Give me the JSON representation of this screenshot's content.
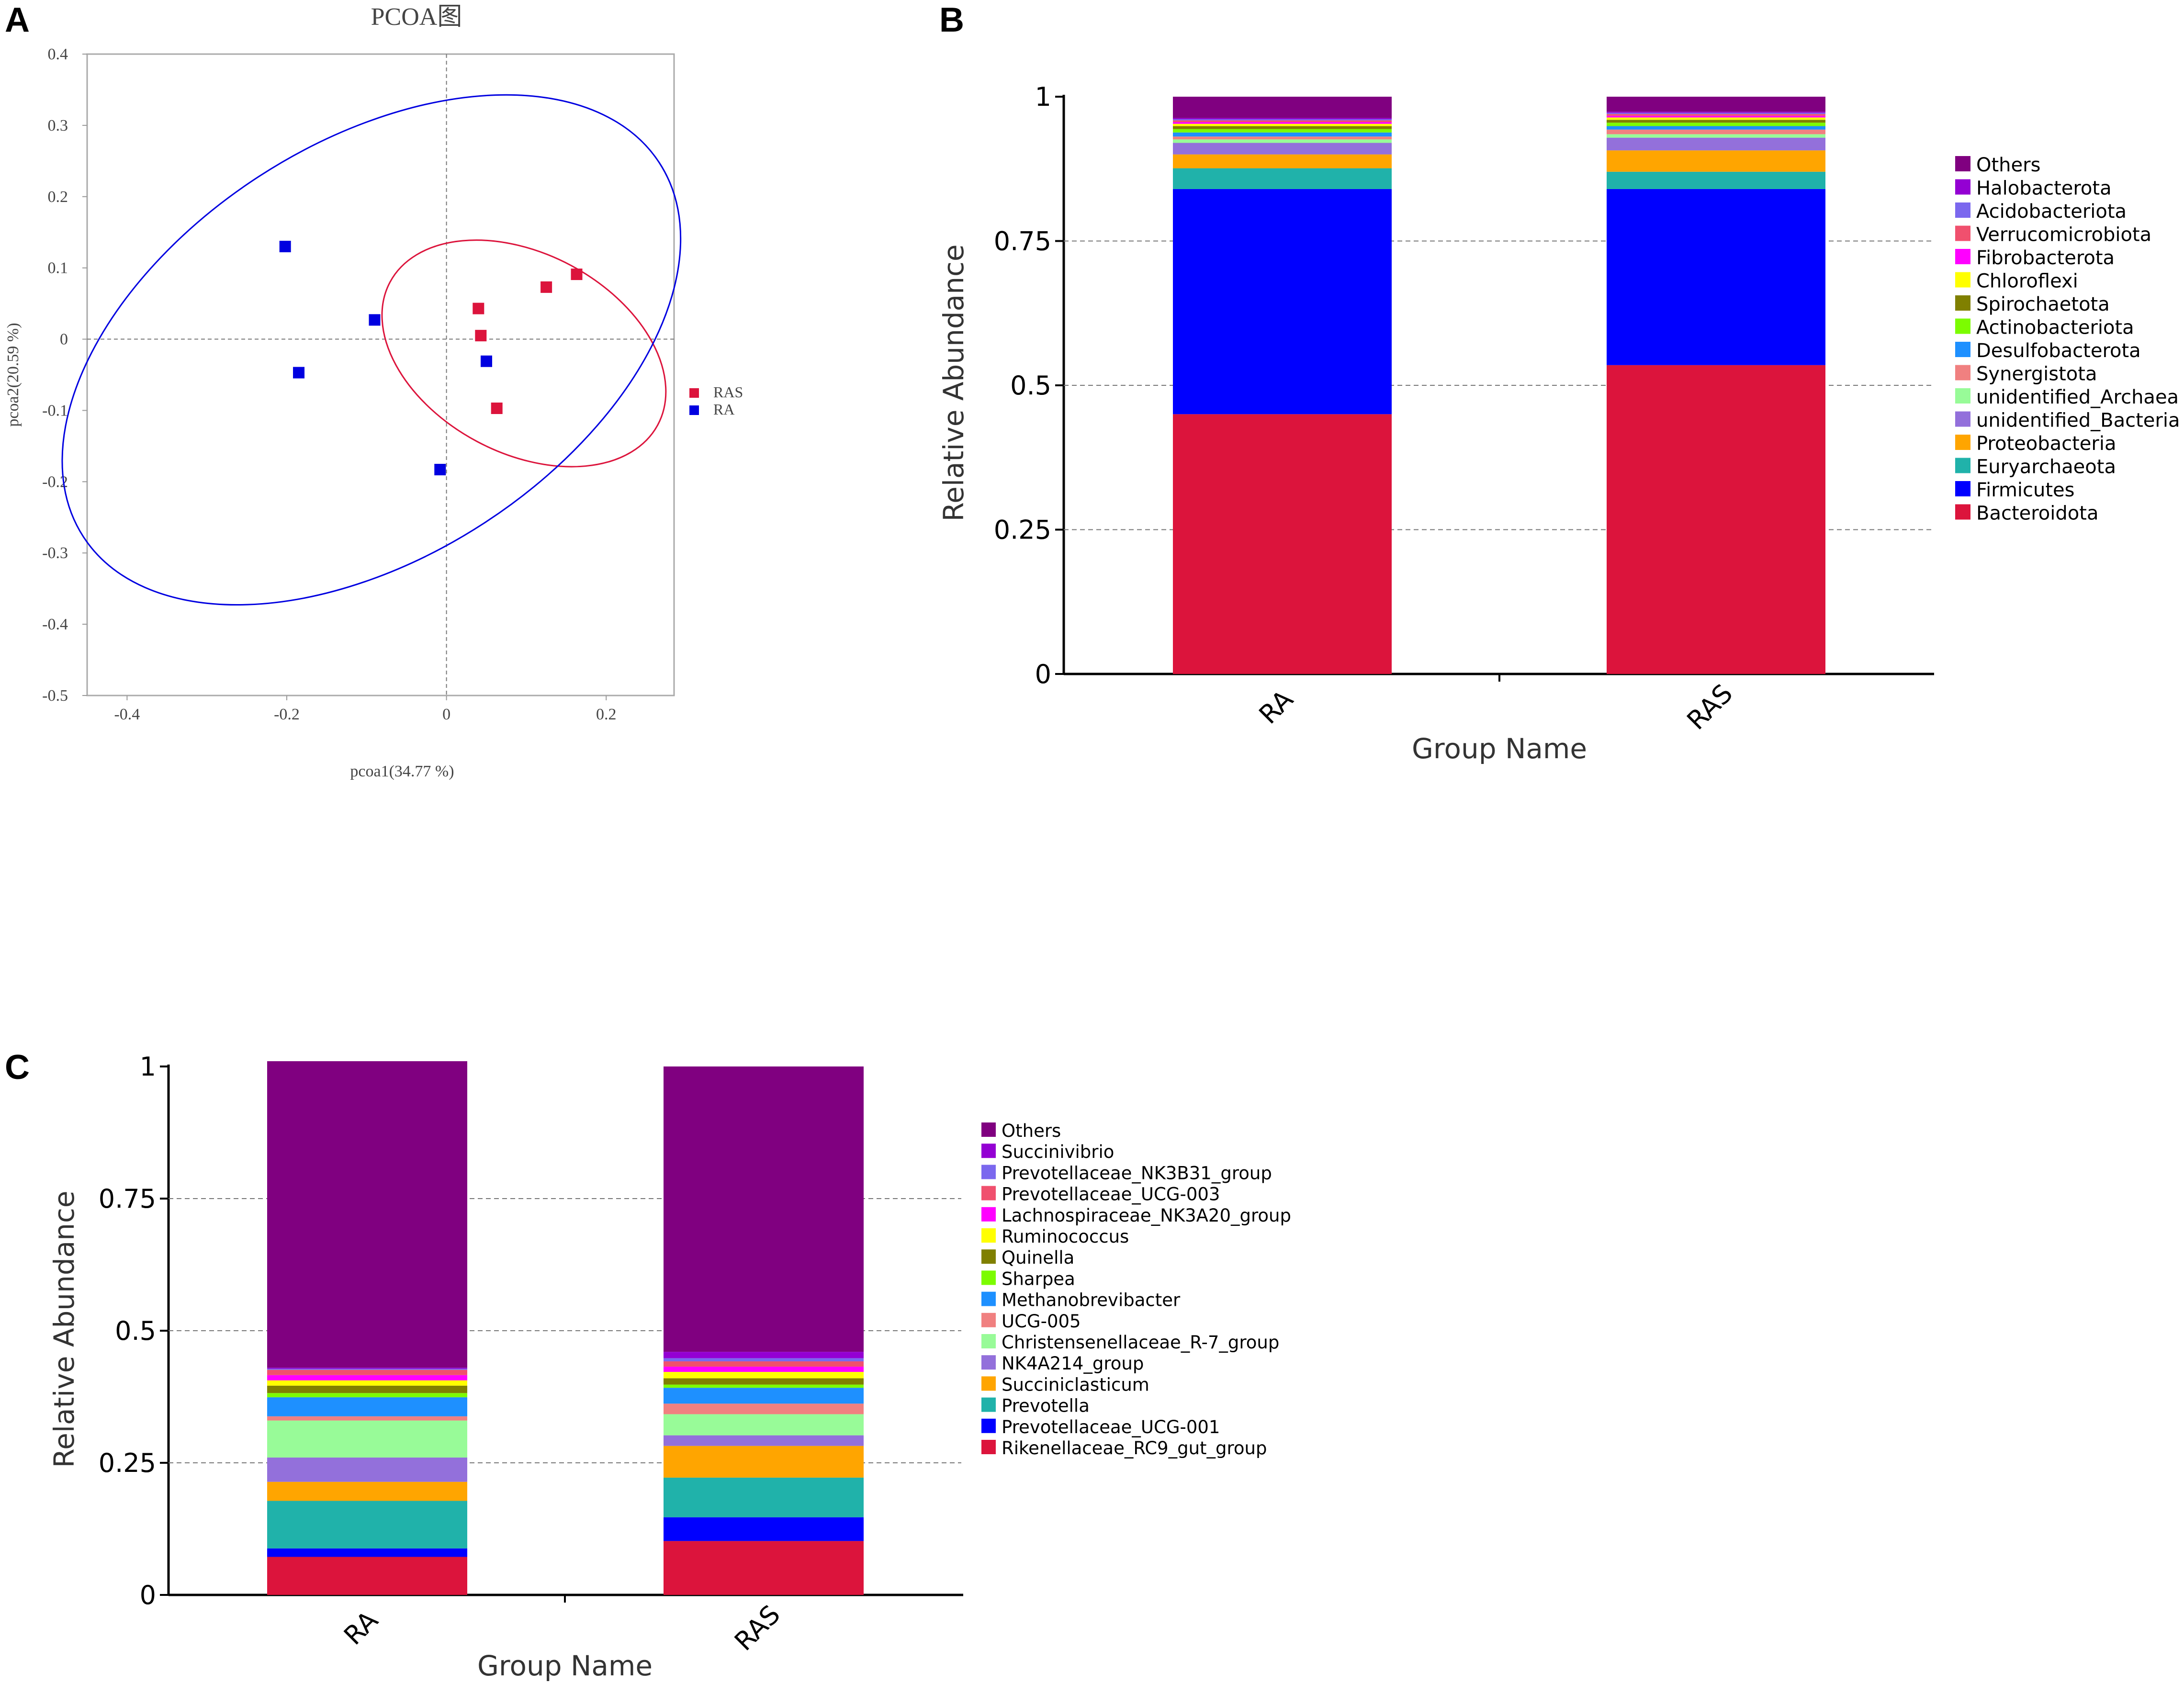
{
  "panels": {
    "a": {
      "letter": "A"
    },
    "b": {
      "letter": "B"
    },
    "c": {
      "letter": "C"
    }
  },
  "chart_data": [
    {
      "id": "pcoa",
      "type": "scatter",
      "title": "PCOA图",
      "xlabel": "pcoa1(34.77 %)",
      "ylabel": "pcoa2(20.59 %)",
      "xlim": [
        -0.45,
        0.285
      ],
      "ylim": [
        -0.5,
        0.4
      ],
      "xticks": [
        -0.4,
        -0.2,
        0,
        0.2
      ],
      "xtick_labels": [
        "-0.4",
        "-0.2",
        "0",
        "0.2"
      ],
      "yticks": [
        0.4,
        0.3,
        0.2,
        0.1,
        0,
        -0.1,
        -0.2,
        -0.3,
        -0.4,
        -0.5
      ],
      "ytick_labels": [
        "0.4",
        "0.3",
        "0.2",
        "0.1",
        "0",
        "-0.1",
        "-0.2",
        "-0.3",
        "-0.4",
        "-0.5"
      ],
      "legend_position": "right",
      "series": [
        {
          "name": "RAS",
          "color": "#dc143c",
          "points": [
            [
              0.04,
              0.043
            ],
            [
              0.043,
              0.005
            ],
            [
              0.125,
              0.073
            ],
            [
              0.163,
              0.091
            ],
            [
              0.063,
              -0.097
            ]
          ],
          "ellipse": {
            "cx": 0.097,
            "cy": -0.02,
            "rx": 0.19,
            "ry": 0.14,
            "angle_deg": 28
          }
        },
        {
          "name": "RA",
          "color": "#0000e0",
          "points": [
            [
              -0.202,
              0.13
            ],
            [
              -0.09,
              0.027
            ],
            [
              -0.185,
              -0.047
            ],
            [
              0.05,
              -0.031
            ],
            [
              -0.008,
              -0.183
            ]
          ],
          "ellipse": {
            "cx": -0.094,
            "cy": -0.015,
            "rx": 0.43,
            "ry": 0.29,
            "angle_deg": -33
          }
        }
      ]
    },
    {
      "id": "phylum",
      "type": "bar",
      "stacked": true,
      "xlabel": "Group Name",
      "ylabel": "Relative Abundance",
      "ylim": [
        0,
        1
      ],
      "yticks": [
        0,
        0.25,
        0.5,
        0.75,
        1
      ],
      "ytick_labels": [
        "0",
        "0.25",
        "0.5",
        "0.75",
        "1"
      ],
      "grid": "dashed horizontal at 0.25, 0.5, 0.75",
      "legend_position": "right",
      "categories": [
        "RA",
        "RAS"
      ],
      "series": [
        {
          "name": "Bacteroidota",
          "color": "#dc143c",
          "values": [
            0.45,
            0.535
          ]
        },
        {
          "name": "Firmicutes",
          "color": "#0000ff",
          "values": [
            0.39,
            0.305
          ]
        },
        {
          "name": "Euryarchaeota",
          "color": "#20b2aa",
          "values": [
            0.036,
            0.03
          ]
        },
        {
          "name": "Proteobacteria",
          "color": "#ffa500",
          "values": [
            0.024,
            0.037
          ]
        },
        {
          "name": "unidentified_Bacteria",
          "color": "#9370db",
          "values": [
            0.02,
            0.022
          ]
        },
        {
          "name": "unidentified_Archaea",
          "color": "#98fb98",
          "values": [
            0.006,
            0.006
          ]
        },
        {
          "name": "Synergistota",
          "color": "#f08080",
          "values": [
            0.005,
            0.008
          ]
        },
        {
          "name": "Desulfobacterota",
          "color": "#1e90ff",
          "values": [
            0.007,
            0.006
          ]
        },
        {
          "name": "Actinobacteriota",
          "color": "#7cfc00",
          "values": [
            0.006,
            0.006
          ]
        },
        {
          "name": "Spirochaetota",
          "color": "#808000",
          "values": [
            0.005,
            0.005
          ]
        },
        {
          "name": "Chloroflexi",
          "color": "#ffff00",
          "values": [
            0.004,
            0.004
          ]
        },
        {
          "name": "Fibrobacterota",
          "color": "#ff00ff",
          "values": [
            0.003,
            0.003
          ]
        },
        {
          "name": "Verrucomicrobiota",
          "color": "#f0506e",
          "values": [
            0.003,
            0.003
          ]
        },
        {
          "name": "Acidobacteriota",
          "color": "#7b68ee",
          "values": [
            0.002,
            0.002
          ]
        },
        {
          "name": "Halobacterota",
          "color": "#9400d3",
          "values": [
            0.002,
            0.002
          ]
        },
        {
          "name": "Others",
          "color": "#800080",
          "values": [
            0.037,
            0.026
          ]
        }
      ]
    },
    {
      "id": "genus",
      "type": "bar",
      "stacked": true,
      "xlabel": "Group Name",
      "ylabel": "Relative Abundance",
      "ylim": [
        0,
        1
      ],
      "yticks": [
        0,
        0.25,
        0.5,
        0.75,
        1
      ],
      "ytick_labels": [
        "0",
        "0.25",
        "0.5",
        "0.75",
        "1"
      ],
      "grid": "dashed horizontal at 0.25, 0.5, 0.75",
      "legend_position": "right",
      "categories": [
        "RA",
        "RAS"
      ],
      "series": [
        {
          "name": "Rikenellaceae_RC9_gut_group",
          "color": "#dc143c",
          "values": [
            0.072,
            0.102
          ]
        },
        {
          "name": "Prevotellaceae_UCG-001",
          "color": "#0000ff",
          "values": [
            0.016,
            0.045
          ]
        },
        {
          "name": "Prevotella",
          "color": "#20b2aa",
          "values": [
            0.09,
            0.075
          ]
        },
        {
          "name": "Succiniclasticum",
          "color": "#ffa500",
          "values": [
            0.036,
            0.06
          ]
        },
        {
          "name": "NK4A214_group",
          "color": "#9370db",
          "values": [
            0.046,
            0.02
          ]
        },
        {
          "name": "Christensenellaceae_R-7_group",
          "color": "#98fb98",
          "values": [
            0.07,
            0.04
          ]
        },
        {
          "name": "UCG-005",
          "color": "#f08080",
          "values": [
            0.008,
            0.02
          ]
        },
        {
          "name": "Methanobrevibacter",
          "color": "#1e90ff",
          "values": [
            0.036,
            0.03
          ]
        },
        {
          "name": "Sharpea",
          "color": "#7cfc00",
          "values": [
            0.008,
            0.006
          ]
        },
        {
          "name": "Quinella",
          "color": "#808000",
          "values": [
            0.014,
            0.012
          ]
        },
        {
          "name": "Ruminococcus",
          "color": "#ffff00",
          "values": [
            0.01,
            0.012
          ]
        },
        {
          "name": "Lachnospiraceae_NK3A20_group",
          "color": "#ff00ff",
          "values": [
            0.01,
            0.01
          ]
        },
        {
          "name": "Prevotellaceae_UCG-003",
          "color": "#f0506e",
          "values": [
            0.01,
            0.01
          ]
        },
        {
          "name": "Prevotellaceae_NK3B31_group",
          "color": "#7b68ee",
          "values": [
            0.002,
            0.006
          ]
        },
        {
          "name": "Succinivibrio",
          "color": "#9400d3",
          "values": [
            0.002,
            0.012
          ]
        },
        {
          "name": "Others",
          "color": "#800080",
          "values": [
            0.58,
            0.54
          ]
        }
      ]
    }
  ]
}
